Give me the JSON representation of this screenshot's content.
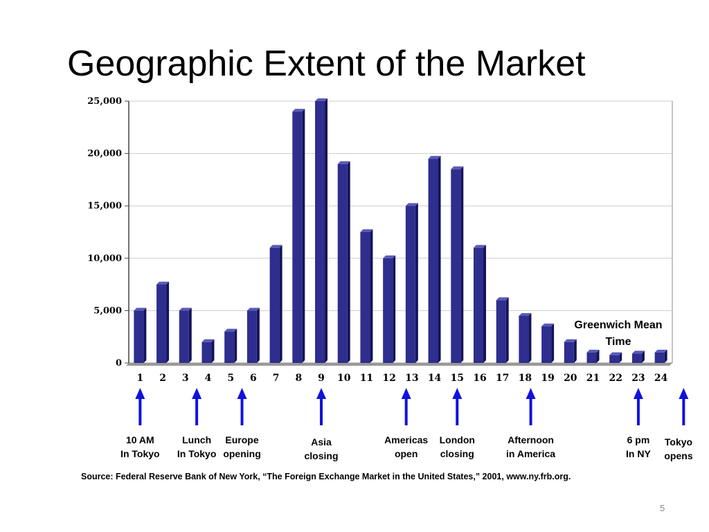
{
  "slide": {
    "title": "Geographic Extent of the Market",
    "source": "Source: Federal Reserve Bank of New York, “The Foreign Exchange Market in the United States,” 2001, www.ny.frb.org.",
    "page_number": "5"
  },
  "chart_data": {
    "type": "bar",
    "title": "",
    "xlabel": "Greenwich Mean\nTime",
    "ylabel": "",
    "ylim": [
      0,
      25000
    ],
    "yticks": [
      0,
      5000,
      10000,
      15000,
      20000,
      25000
    ],
    "ytick_labels": [
      "0",
      "5,000",
      "10,000",
      "15,000",
      "20,000",
      "25,000"
    ],
    "categories": [
      "1",
      "2",
      "3",
      "4",
      "5",
      "6",
      "7",
      "8",
      "9",
      "10",
      "11",
      "12",
      "13",
      "14",
      "15",
      "16",
      "17",
      "18",
      "19",
      "20",
      "21",
      "22",
      "23",
      "24"
    ],
    "values": [
      5000,
      7500,
      5000,
      2000,
      3000,
      5000,
      11000,
      24000,
      25000,
      19000,
      12500,
      10000,
      15000,
      19500,
      18500,
      11000,
      6000,
      4500,
      3500,
      2000,
      1000,
      750,
      900,
      1000
    ],
    "grid": true,
    "bar_color": "#2e2e8f",
    "arrow_color": "#1111dd",
    "annotations": [
      {
        "hour": 1,
        "text": "10 AM\nIn Tokyo"
      },
      {
        "hour": 3.5,
        "text": "Lunch\nIn Tokyo"
      },
      {
        "hour": 5.5,
        "text": "Europe\nopening"
      },
      {
        "hour": 9,
        "text": "Asia\nclosing"
      },
      {
        "hour": 12.75,
        "text": "Americas\nopen"
      },
      {
        "hour": 15,
        "text": "London\nclosing"
      },
      {
        "hour": 18.25,
        "text": "Afternoon\nin America"
      },
      {
        "hour": 23,
        "text": "6 pm\nIn NY"
      },
      {
        "hour": 25,
        "text": "Tokyo\nopens"
      }
    ]
  }
}
